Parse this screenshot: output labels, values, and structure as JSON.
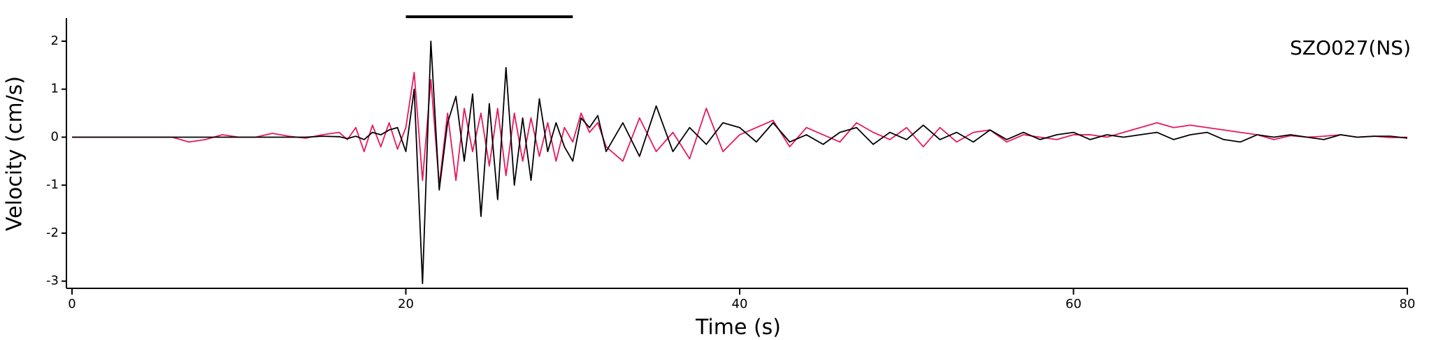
{
  "chart_data": {
    "type": "line",
    "annotation": "SZO027(NS)",
    "x_label": "Time (s)",
    "y_label": "Velocity (cm/s)",
    "xlim": [
      0,
      80
    ],
    "xticks": [
      0,
      20,
      40,
      60,
      80
    ],
    "ylim": [
      -3.15,
      2.48
    ],
    "yticks": [
      -3,
      -2,
      -1,
      0,
      1,
      2
    ],
    "highlight_x": [
      20,
      30
    ],
    "highlight_color": "#000000",
    "x": [
      0,
      1,
      2,
      3,
      4,
      5,
      6,
      7,
      8,
      9,
      10,
      11,
      12,
      13,
      14,
      15,
      16,
      16.5,
      17,
      17.5,
      18,
      18.5,
      19,
      19.5,
      20,
      20.5,
      21,
      21.5,
      22,
      22.5,
      23,
      23.5,
      24,
      24.5,
      25,
      25.5,
      26,
      26.5,
      27,
      27.5,
      28,
      28.5,
      29,
      29.5,
      30,
      30.5,
      31,
      31.5,
      32,
      33,
      34,
      35,
      36,
      37,
      38,
      39,
      40,
      41,
      42,
      43,
      44,
      45,
      46,
      47,
      48,
      49,
      50,
      51,
      52,
      53,
      54,
      55,
      56,
      57,
      58,
      59,
      60,
      61,
      62,
      63,
      64,
      65,
      66,
      67,
      68,
      69,
      70,
      71,
      72,
      73,
      74,
      75,
      76,
      77,
      78,
      79,
      80
    ],
    "series": [
      {
        "color": "#000000",
        "values": [
          0,
          0,
          0,
          0,
          0,
          0,
          0,
          0,
          0,
          0,
          0,
          0,
          0,
          0,
          0,
          0.02,
          0.01,
          -0.03,
          0.02,
          -0.05,
          0.1,
          0.05,
          0.15,
          0.2,
          -0.3,
          1.0,
          -3.05,
          2.0,
          -1.1,
          0.3,
          0.85,
          -0.5,
          0.9,
          -1.65,
          0.7,
          -1.3,
          1.45,
          -1.0,
          0.4,
          -0.9,
          0.8,
          -0.3,
          0.3,
          -0.2,
          -0.5,
          0.4,
          0.2,
          0.45,
          -0.3,
          0.3,
          -0.4,
          0.65,
          -0.3,
          0.2,
          -0.15,
          0.3,
          0.2,
          -0.1,
          0.3,
          -0.1,
          0.05,
          -0.15,
          0.1,
          0.2,
          -0.15,
          0.1,
          -0.05,
          0.25,
          -0.05,
          0.1,
          -0.1,
          0.15,
          -0.05,
          0.1,
          -0.05,
          0.05,
          0.1,
          -0.05,
          0.05,
          0,
          0.05,
          0.1,
          -0.05,
          0.05,
          0.1,
          -0.05,
          -0.1,
          0.05,
          0,
          0.05,
          0,
          -0.05,
          0.05,
          0,
          0.02,
          0.02,
          -0.02
        ]
      },
      {
        "color": "#e8175d",
        "values": [
          0,
          0,
          0,
          0,
          0,
          0,
          0,
          -0.1,
          -0.05,
          0.05,
          0,
          0,
          0.08,
          0.02,
          -0.02,
          0.05,
          0.1,
          -0.05,
          0.2,
          -0.3,
          0.25,
          -0.2,
          0.3,
          -0.25,
          0.2,
          1.35,
          -0.9,
          1.2,
          -1.0,
          0.5,
          -0.9,
          0.6,
          -0.3,
          0.5,
          -0.6,
          0.6,
          -0.8,
          0.5,
          -0.5,
          0.4,
          -0.4,
          0.3,
          -0.5,
          0.2,
          -0.1,
          0.5,
          0.1,
          0.3,
          -0.2,
          -0.5,
          0.4,
          -0.3,
          0.1,
          -0.45,
          0.6,
          -0.3,
          0.05,
          0.2,
          0.35,
          -0.2,
          0.2,
          0.05,
          -0.1,
          0.3,
          0.1,
          -0.05,
          0.2,
          -0.2,
          0.2,
          -0.1,
          0.1,
          0.15,
          -0.1,
          0.05,
          0,
          -0.05,
          0.05,
          0.05,
          0,
          0.1,
          0.2,
          0.3,
          0.2,
          0.25,
          0.2,
          0.15,
          0.1,
          0.05,
          -0.05,
          0.03,
          0,
          0.02,
          0.05,
          0,
          0.02,
          -0.01,
          0
        ]
      }
    ]
  }
}
